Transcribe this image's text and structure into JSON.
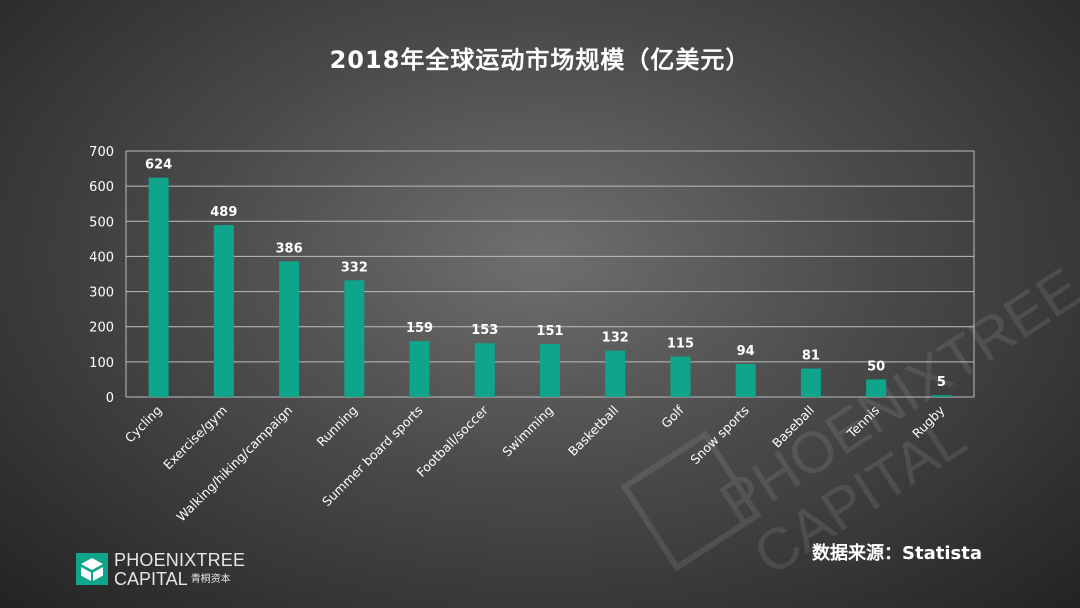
{
  "chart_data": {
    "type": "bar",
    "title": "2018年全球运动市场规模（亿美元）",
    "categories": [
      "Cycling",
      "Exercise/gym",
      "Walking/hiking/campaign",
      "Running",
      "Summer board sports",
      "Football/soccer",
      "Swimming",
      "Basketball",
      "Golf",
      "Snow sports",
      "Baseball",
      "Tennis",
      "Rugby"
    ],
    "values": [
      624,
      489,
      386,
      332,
      159,
      153,
      151,
      132,
      115,
      94,
      81,
      50,
      5
    ],
    "data_labels": [
      "624",
      "489",
      "386",
      "332",
      "159",
      "153",
      "151",
      "132",
      "115",
      "94",
      "81",
      "50",
      "5"
    ],
    "ylim": [
      0,
      700
    ],
    "yticks": [
      "0",
      "100",
      "200",
      "300",
      "400",
      "500",
      "600",
      "700"
    ],
    "xlabel": "",
    "ylabel": "",
    "grid": true,
    "legend": "none",
    "bar_color": "#0ea58a"
  },
  "source": "数据来源：Statista",
  "logo": {
    "line1": "PHOENIXTREE",
    "line2": "CAPITAL",
    "line2_cn": "青桐资本",
    "icon": "phoenixtree-logo-icon",
    "color": "#0ea58a"
  },
  "watermark": {
    "text_line1": "PHOENIXTREE",
    "text_line2": "CAPITAL"
  }
}
